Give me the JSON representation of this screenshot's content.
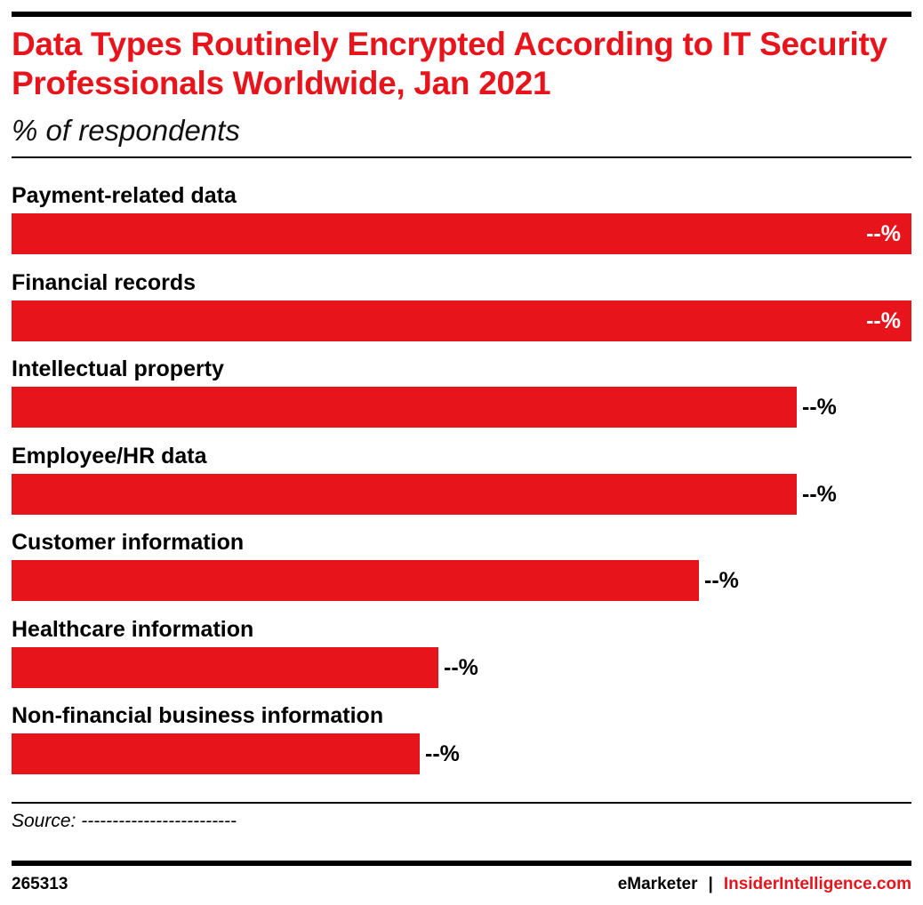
{
  "chart_data": {
    "type": "bar",
    "orientation": "horizontal",
    "title": "Data Types Routinely Encrypted According to IT Security Professionals Worldwide, Jan 2021",
    "subtitle": "% of respondents",
    "categories": [
      "Payment-related data",
      "Financial records",
      "Intellectual property",
      "Employee/HR data",
      "Customer information",
      "Healthcare information",
      "Non-financial business information"
    ],
    "values": [
      100,
      100,
      87.3,
      87.3,
      76.4,
      47.4,
      45.4
    ],
    "value_labels": [
      "--%",
      "--%",
      "--%",
      "--%",
      "--%",
      "--%",
      "--%"
    ],
    "bar_color": "#e8141c",
    "grid": false,
    "legend": "none"
  },
  "footer": {
    "source": "Source: -------------------------",
    "chart_id": "265313",
    "brand_left": "eMarketer",
    "separator": "|",
    "brand_right": "InsiderIntelligence.com",
    "brand_right_color": "#e8141c"
  }
}
